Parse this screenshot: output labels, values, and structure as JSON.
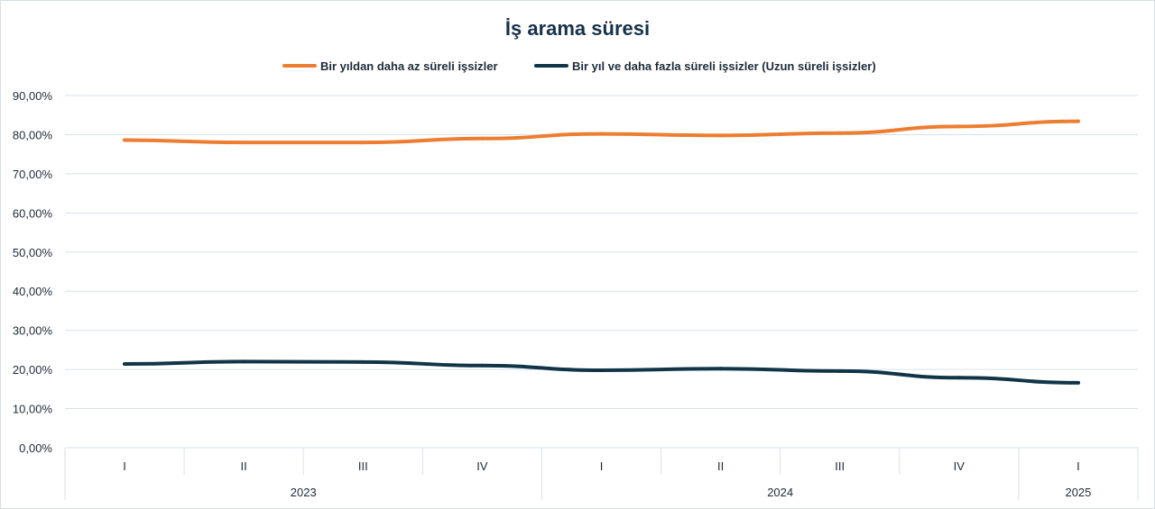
{
  "chart_data": {
    "type": "line",
    "title": "İş arama süresi",
    "categories": [
      "I",
      "II",
      "III",
      "IV",
      "I",
      "II",
      "III",
      "IV",
      "I"
    ],
    "groups": [
      {
        "label": "2023",
        "span": 4
      },
      {
        "label": "2024",
        "span": 4
      },
      {
        "label": "2025",
        "span": 1
      }
    ],
    "y_tick_labels": [
      "0,00%",
      "10,00%",
      "20,00%",
      "30,00%",
      "40,00%",
      "50,00%",
      "60,00%",
      "70,00%",
      "80,00%",
      "90,00%"
    ],
    "ylim": [
      0,
      90
    ],
    "grid": true,
    "legend_position": "top",
    "series": [
      {
        "name": "Bir yıldan daha az süreli işsizler",
        "color": "#ed7d31",
        "values": [
          78.6,
          78.0,
          78.0,
          79.0,
          80.2,
          79.8,
          80.4,
          82.1,
          83.4
        ]
      },
      {
        "name": "Bir yıl ve daha fazla süreli işsizler (Uzun süreli işsizler)",
        "color": "#0f3547",
        "values": [
          21.4,
          22.0,
          21.9,
          21.0,
          19.8,
          20.2,
          19.6,
          17.9,
          16.6
        ]
      }
    ]
  }
}
